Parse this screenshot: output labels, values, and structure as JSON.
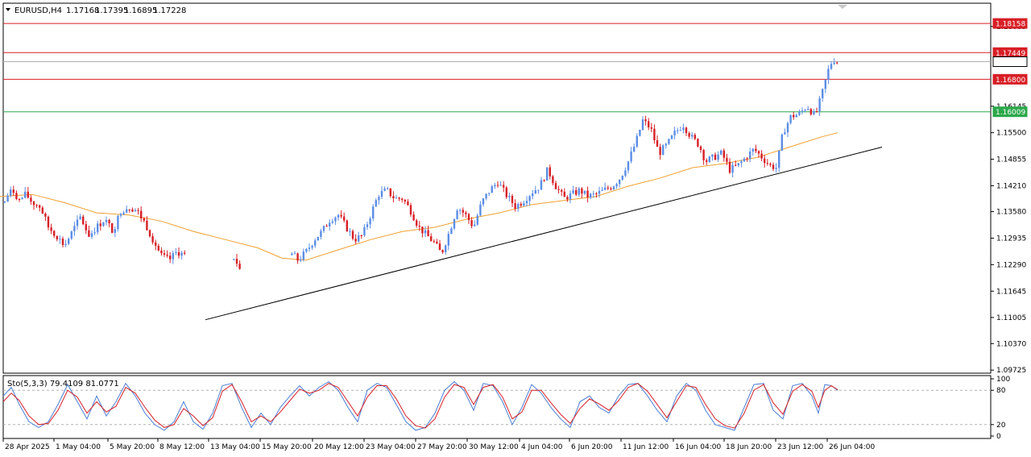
{
  "header": {
    "symbol": "EURUSD,H4",
    "open": "1.17168",
    "high": "1.17395",
    "low": "1.16895",
    "close": "1.17228"
  },
  "stoch_label": "Sto(5,3,3) 79.4109 81.0771",
  "colors": {
    "bull": "#5b8ee6",
    "bear": "#d81f26",
    "ma": "#f0a030",
    "trendline": "#000000",
    "level_red": "#d81f26",
    "level_green": "#2ba84a",
    "stoch_main": "#4a7fd4",
    "stoch_signal": "#d81f26"
  },
  "chart_data": {
    "type": "candlestick",
    "symbol": "EURUSD",
    "timeframe": "H4",
    "y_ticks": [
      "1.18085",
      "1.16145",
      "1.15500",
      "1.14855",
      "1.14210",
      "1.13580",
      "1.12935",
      "1.12290",
      "1.11645",
      "1.11005",
      "1.10370",
      "1.09725"
    ],
    "ylim": [
      1.0965,
      1.1865
    ],
    "x_ticks": [
      "28 Apr 2025",
      "1 May 04:00",
      "5 May 20:00",
      "8 May 12:00",
      "13 May 04:00",
      "15 May 20:00",
      "20 May 12:00",
      "23 May 04:00",
      "27 May 20:00",
      "30 May 12:00",
      "4 Jun 04:00",
      "6 Jun 20:00",
      "11 Jun 12:00",
      "16 Jun 04:00",
      "18 Jun 20:00",
      "23 Jun 12:00",
      "26 Jun 04:00"
    ],
    "levels": [
      {
        "label": "1.18158",
        "value": 1.18158,
        "color": "red"
      },
      {
        "label": "1.17449",
        "value": 1.17449,
        "color": "red"
      },
      {
        "label": "1.17228",
        "value": 1.17228,
        "color": "gray"
      },
      {
        "label": "1.16800",
        "value": 1.168,
        "color": "red"
      },
      {
        "label": "1.16009",
        "value": 1.16009,
        "color": "green"
      }
    ],
    "candle_path": [
      [
        0,
        1.134
      ],
      [
        8,
        1.1395
      ],
      [
        16,
        1.141
      ],
      [
        24,
        1.1385
      ],
      [
        32,
        1.14
      ],
      [
        40,
        1.138
      ],
      [
        50,
        1.137
      ],
      [
        60,
        1.132
      ],
      [
        70,
        1.13
      ],
      [
        80,
        1.1275
      ],
      [
        90,
        1.131
      ],
      [
        100,
        1.1345
      ],
      [
        110,
        1.13
      ],
      [
        120,
        1.132
      ],
      [
        130,
        1.134
      ],
      [
        140,
        1.131
      ],
      [
        150,
        1.136
      ],
      [
        160,
        1.137
      ],
      [
        170,
        1.136
      ],
      [
        180,
        1.133
      ],
      [
        190,
        1.129
      ],
      [
        200,
        1.125
      ],
      [
        210,
        1.124
      ],
      [
        220,
        1.126
      ],
      [
        232,
        1.125
      ],
      [
        290,
        1.124
      ],
      [
        300,
        1.122
      ],
      [
        360,
        1.126
      ],
      [
        370,
        1.124
      ],
      [
        380,
        1.126
      ],
      [
        390,
        1.129
      ],
      [
        400,
        1.131
      ],
      [
        410,
        1.134
      ],
      [
        420,
        1.135
      ],
      [
        430,
        1.132
      ],
      [
        440,
        1.129
      ],
      [
        450,
        1.13
      ],
      [
        460,
        1.135
      ],
      [
        470,
        1.14
      ],
      [
        480,
        1.141
      ],
      [
        490,
        1.139
      ],
      [
        500,
        1.139
      ],
      [
        510,
        1.136
      ],
      [
        520,
        1.132
      ],
      [
        530,
        1.13
      ],
      [
        540,
        1.128
      ],
      [
        548,
        1.1255
      ],
      [
        558,
        1.131
      ],
      [
        568,
        1.137
      ],
      [
        578,
        1.135
      ],
      [
        588,
        1.132
      ],
      [
        598,
        1.138
      ],
      [
        608,
        1.141
      ],
      [
        618,
        1.143
      ],
      [
        628,
        1.14
      ],
      [
        640,
        1.137
      ],
      [
        650,
        1.1385
      ],
      [
        660,
        1.1405
      ],
      [
        670,
        1.142
      ],
      [
        680,
        1.146
      ],
      [
        690,
        1.142
      ],
      [
        700,
        1.139
      ],
      [
        710,
        1.14
      ],
      [
        720,
        1.141
      ],
      [
        730,
        1.1395
      ],
      [
        740,
        1.14
      ],
      [
        750,
        1.141
      ],
      [
        760,
        1.142
      ],
      [
        770,
        1.144
      ],
      [
        780,
        1.148
      ],
      [
        790,
        1.153
      ],
      [
        798,
        1.158
      ],
      [
        808,
        1.156
      ],
      [
        818,
        1.15
      ],
      [
        828,
        1.152
      ],
      [
        838,
        1.155
      ],
      [
        848,
        1.157
      ],
      [
        858,
        1.154
      ],
      [
        868,
        1.152
      ],
      [
        876,
        1.148
      ],
      [
        886,
        1.149
      ],
      [
        896,
        1.15
      ],
      [
        906,
        1.146
      ],
      [
        916,
        1.147
      ],
      [
        926,
        1.149
      ],
      [
        936,
        1.151
      ],
      [
        946,
        1.149
      ],
      [
        956,
        1.147
      ],
      [
        964,
        1.1465
      ],
      [
        972,
        1.155
      ],
      [
        982,
        1.159
      ],
      [
        992,
        1.1595
      ],
      [
        1002,
        1.1615
      ],
      [
        1012,
        1.159
      ],
      [
        1020,
        1.164
      ],
      [
        1028,
        1.17
      ],
      [
        1034,
        1.173
      ],
      [
        1040,
        1.1722
      ]
    ],
    "ma_path": [
      [
        0,
        1.1395
      ],
      [
        40,
        1.14
      ],
      [
        80,
        1.138
      ],
      [
        120,
        1.1355
      ],
      [
        160,
        1.135
      ],
      [
        200,
        1.1335
      ],
      [
        240,
        1.131
      ],
      [
        280,
        1.129
      ],
      [
        320,
        1.127
      ],
      [
        350,
        1.1245
      ],
      [
        380,
        1.124
      ],
      [
        420,
        1.1265
      ],
      [
        460,
        1.129
      ],
      [
        500,
        1.131
      ],
      [
        540,
        1.132
      ],
      [
        580,
        1.134
      ],
      [
        620,
        1.1355
      ],
      [
        660,
        1.1375
      ],
      [
        700,
        1.1385
      ],
      [
        740,
        1.1395
      ],
      [
        780,
        1.142
      ],
      [
        820,
        1.144
      ],
      [
        860,
        1.1465
      ],
      [
        900,
        1.1475
      ],
      [
        940,
        1.149
      ],
      [
        980,
        1.1515
      ],
      [
        1020,
        1.154
      ],
      [
        1040,
        1.155
      ]
    ],
    "trendline": [
      [
        255,
        1.1095
      ],
      [
        1095,
        1.1515
      ]
    ],
    "stoch": {
      "label": "Sto(5,3,3)",
      "main": 79.4109,
      "signal": 81.0771,
      "levels": [
        20,
        80
      ],
      "ylim": [
        0,
        100
      ],
      "y_ticks": [
        "100",
        "80",
        "20",
        "0"
      ],
      "main_path": [
        [
          4,
          70
        ],
        [
          14,
          85
        ],
        [
          24,
          55
        ],
        [
          36,
          25
        ],
        [
          48,
          15
        ],
        [
          60,
          25
        ],
        [
          72,
          55
        ],
        [
          84,
          90
        ],
        [
          96,
          60
        ],
        [
          108,
          30
        ],
        [
          120,
          70
        ],
        [
          132,
          35
        ],
        [
          144,
          60
        ],
        [
          156,
          92
        ],
        [
          168,
          70
        ],
        [
          180,
          40
        ],
        [
          192,
          20
        ],
        [
          204,
          10
        ],
        [
          216,
          25
        ],
        [
          228,
          60
        ],
        [
          240,
          25
        ],
        [
          252,
          12
        ],
        [
          264,
          40
        ],
        [
          276,
          88
        ],
        [
          288,
          92
        ],
        [
          300,
          50
        ],
        [
          312,
          15
        ],
        [
          324,
          40
        ],
        [
          336,
          20
        ],
        [
          348,
          50
        ],
        [
          360,
          70
        ],
        [
          372,
          88
        ],
        [
          384,
          70
        ],
        [
          396,
          85
        ],
        [
          408,
          95
        ],
        [
          420,
          80
        ],
        [
          432,
          50
        ],
        [
          444,
          25
        ],
        [
          456,
          80
        ],
        [
          468,
          92
        ],
        [
          480,
          85
        ],
        [
          492,
          55
        ],
        [
          504,
          25
        ],
        [
          516,
          10
        ],
        [
          528,
          15
        ],
        [
          540,
          40
        ],
        [
          552,
          80
        ],
        [
          564,
          95
        ],
        [
          576,
          80
        ],
        [
          588,
          45
        ],
        [
          600,
          92
        ],
        [
          612,
          88
        ],
        [
          624,
          60
        ],
        [
          636,
          20
        ],
        [
          648,
          50
        ],
        [
          660,
          90
        ],
        [
          672,
          75
        ],
        [
          684,
          50
        ],
        [
          696,
          30
        ],
        [
          708,
          15
        ],
        [
          720,
          60
        ],
        [
          732,
          70
        ],
        [
          744,
          50
        ],
        [
          756,
          40
        ],
        [
          768,
          70
        ],
        [
          780,
          90
        ],
        [
          792,
          92
        ],
        [
          804,
          70
        ],
        [
          816,
          45
        ],
        [
          828,
          25
        ],
        [
          840,
          70
        ],
        [
          852,
          92
        ],
        [
          864,
          80
        ],
        [
          876,
          45
        ],
        [
          888,
          20
        ],
        [
          900,
          15
        ],
        [
          912,
          10
        ],
        [
          924,
          50
        ],
        [
          936,
          90
        ],
        [
          948,
          92
        ],
        [
          960,
          45
        ],
        [
          972,
          30
        ],
        [
          984,
          88
        ],
        [
          996,
          92
        ],
        [
          1008,
          70
        ],
        [
          1016,
          40
        ],
        [
          1024,
          90
        ],
        [
          1032,
          88
        ],
        [
          1040,
          80
        ]
      ],
      "signal_path": [
        [
          4,
          60
        ],
        [
          14,
          75
        ],
        [
          24,
          62
        ],
        [
          36,
          35
        ],
        [
          48,
          20
        ],
        [
          60,
          22
        ],
        [
          72,
          45
        ],
        [
          84,
          80
        ],
        [
          96,
          68
        ],
        [
          108,
          40
        ],
        [
          120,
          60
        ],
        [
          132,
          42
        ],
        [
          144,
          52
        ],
        [
          156,
          85
        ],
        [
          168,
          75
        ],
        [
          180,
          50
        ],
        [
          192,
          28
        ],
        [
          204,
          15
        ],
        [
          216,
          20
        ],
        [
          228,
          48
        ],
        [
          240,
          35
        ],
        [
          252,
          18
        ],
        [
          264,
          32
        ],
        [
          276,
          78
        ],
        [
          288,
          90
        ],
        [
          300,
          60
        ],
        [
          312,
          25
        ],
        [
          324,
          35
        ],
        [
          336,
          25
        ],
        [
          348,
          42
        ],
        [
          360,
          62
        ],
        [
          372,
          82
        ],
        [
          384,
          75
        ],
        [
          396,
          80
        ],
        [
          408,
          92
        ],
        [
          420,
          85
        ],
        [
          432,
          60
        ],
        [
          444,
          35
        ],
        [
          456,
          68
        ],
        [
          468,
          88
        ],
        [
          480,
          88
        ],
        [
          492,
          65
        ],
        [
          504,
          35
        ],
        [
          516,
          18
        ],
        [
          528,
          14
        ],
        [
          540,
          30
        ],
        [
          552,
          68
        ],
        [
          564,
          90
        ],
        [
          576,
          85
        ],
        [
          588,
          55
        ],
        [
          600,
          85
        ],
        [
          612,
          90
        ],
        [
          624,
          68
        ],
        [
          636,
          30
        ],
        [
          648,
          42
        ],
        [
          660,
          80
        ],
        [
          672,
          80
        ],
        [
          684,
          58
        ],
        [
          696,
          38
        ],
        [
          708,
          22
        ],
        [
          720,
          48
        ],
        [
          732,
          65
        ],
        [
          744,
          56
        ],
        [
          756,
          45
        ],
        [
          768,
          62
        ],
        [
          780,
          85
        ],
        [
          792,
          92
        ],
        [
          804,
          78
        ],
        [
          816,
          55
        ],
        [
          828,
          32
        ],
        [
          840,
          60
        ],
        [
          852,
          88
        ],
        [
          864,
          85
        ],
        [
          876,
          55
        ],
        [
          888,
          30
        ],
        [
          900,
          18
        ],
        [
          912,
          14
        ],
        [
          924,
          40
        ],
        [
          936,
          80
        ],
        [
          948,
          90
        ],
        [
          960,
          58
        ],
        [
          972,
          38
        ],
        [
          984,
          78
        ],
        [
          996,
          90
        ],
        [
          1008,
          78
        ],
        [
          1016,
          50
        ],
        [
          1024,
          80
        ],
        [
          1032,
          88
        ],
        [
          1040,
          81
        ]
      ]
    }
  }
}
